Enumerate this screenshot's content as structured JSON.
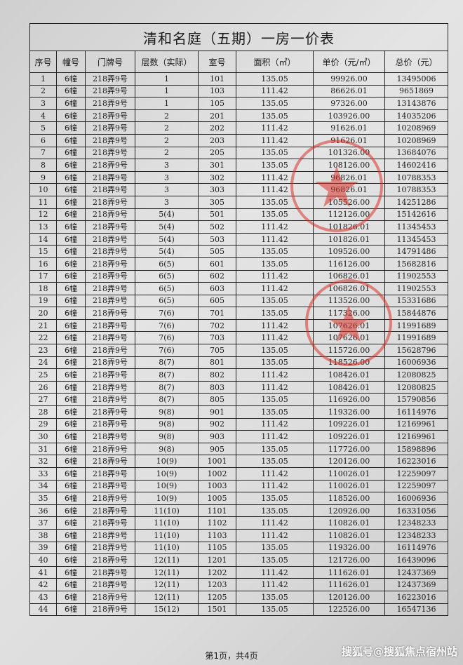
{
  "document": {
    "title": "清和名庭（五期）一房一价表",
    "columns": [
      "序号",
      "幢号",
      "门牌号",
      "层数（实际）",
      "室号",
      "面积（㎡）",
      "单价（元/㎡）",
      "总价（元）"
    ],
    "rows": [
      [
        "1",
        "6幢",
        "218弄9号",
        "1",
        "101",
        "135.05",
        "99926.00",
        "13495006"
      ],
      [
        "2",
        "6幢",
        "218弄9号",
        "1",
        "103",
        "111.42",
        "86626.01",
        "9651869"
      ],
      [
        "3",
        "6幢",
        "218弄9号",
        "1",
        "105",
        "135.05",
        "97326.00",
        "13143876"
      ],
      [
        "4",
        "6幢",
        "218弄9号",
        "2",
        "201",
        "135.05",
        "103926.00",
        "14035206"
      ],
      [
        "5",
        "6幢",
        "218弄9号",
        "2",
        "202",
        "111.42",
        "91626.01",
        "10208969"
      ],
      [
        "6",
        "6幢",
        "218弄9号",
        "2",
        "203",
        "111.42",
        "91626.01",
        "10208969"
      ],
      [
        "7",
        "6幢",
        "218弄9号",
        "2",
        "205",
        "135.05",
        "101326.00",
        "13684076"
      ],
      [
        "8",
        "6幢",
        "218弄9号",
        "3",
        "301",
        "135.05",
        "108126.00",
        "14602416"
      ],
      [
        "9",
        "6幢",
        "218弄9号",
        "3",
        "302",
        "111.42",
        "96826.01",
        "10788353"
      ],
      [
        "10",
        "6幢",
        "218弄9号",
        "3",
        "303",
        "111.42",
        "96826.01",
        "10788353"
      ],
      [
        "11",
        "6幢",
        "218弄9号",
        "3",
        "305",
        "135.05",
        "105526.00",
        "14251286"
      ],
      [
        "12",
        "6幢",
        "218弄9号",
        "5(4)",
        "501",
        "135.05",
        "112126.00",
        "15142616"
      ],
      [
        "13",
        "6幢",
        "218弄9号",
        "5(4)",
        "502",
        "111.42",
        "101826.01",
        "11345453"
      ],
      [
        "14",
        "6幢",
        "218弄9号",
        "5(4)",
        "503",
        "111.42",
        "101826.01",
        "11345453"
      ],
      [
        "15",
        "6幢",
        "218弄9号",
        "5(4)",
        "505",
        "135.05",
        "109526.00",
        "14791486"
      ],
      [
        "16",
        "6幢",
        "218弄9号",
        "6(5)",
        "601",
        "135.05",
        "116126.00",
        "15682816"
      ],
      [
        "17",
        "6幢",
        "218弄9号",
        "6(5)",
        "602",
        "111.42",
        "106826.01",
        "11902553"
      ],
      [
        "18",
        "6幢",
        "218弄9号",
        "6(5)",
        "603",
        "111.42",
        "106826.01",
        "11902553"
      ],
      [
        "19",
        "6幢",
        "218弄9号",
        "6(5)",
        "605",
        "135.05",
        "113526.00",
        "15331686"
      ],
      [
        "20",
        "6幢",
        "218弄9号",
        "7(6)",
        "701",
        "135.05",
        "117326.00",
        "15844876"
      ],
      [
        "21",
        "6幢",
        "218弄9号",
        "7(6)",
        "702",
        "111.42",
        "107626.01",
        "11991689"
      ],
      [
        "22",
        "6幢",
        "218弄9号",
        "7(6)",
        "703",
        "111.42",
        "107626.01",
        "11991689"
      ],
      [
        "23",
        "6幢",
        "218弄9号",
        "7(6)",
        "705",
        "135.05",
        "115726.00",
        "15628796"
      ],
      [
        "24",
        "6幢",
        "218弄9号",
        "8(7)",
        "801",
        "135.05",
        "118526.00",
        "16006936"
      ],
      [
        "25",
        "6幢",
        "218弄9号",
        "8(7)",
        "802",
        "111.42",
        "108426.01",
        "12080825"
      ],
      [
        "26",
        "6幢",
        "218弄9号",
        "8(7)",
        "803",
        "111.42",
        "108426.01",
        "12080825"
      ],
      [
        "27",
        "6幢",
        "218弄9号",
        "8(7)",
        "805",
        "135.05",
        "116926.00",
        "15790856"
      ],
      [
        "28",
        "6幢",
        "218弄9号",
        "9(8)",
        "901",
        "135.05",
        "119326.00",
        "16114976"
      ],
      [
        "29",
        "6幢",
        "218弄9号",
        "9(8)",
        "902",
        "111.42",
        "109226.01",
        "12169961"
      ],
      [
        "30",
        "6幢",
        "218弄9号",
        "9(8)",
        "903",
        "111.42",
        "109226.01",
        "12169961"
      ],
      [
        "31",
        "6幢",
        "218弄9号",
        "9(8)",
        "905",
        "135.05",
        "117726.00",
        "15898896"
      ],
      [
        "32",
        "6幢",
        "218弄9号",
        "10(9)",
        "1001",
        "135.05",
        "120126.00",
        "16223016"
      ],
      [
        "33",
        "6幢",
        "218弄9号",
        "10(9)",
        "1002",
        "111.42",
        "110026.01",
        "12259097"
      ],
      [
        "34",
        "6幢",
        "218弄9号",
        "10(9)",
        "1003",
        "111.42",
        "110026.01",
        "12259097"
      ],
      [
        "35",
        "6幢",
        "218弄9号",
        "10(9)",
        "1005",
        "135.05",
        "118526.00",
        "16006936"
      ],
      [
        "36",
        "6幢",
        "218弄9号",
        "11(10)",
        "1101",
        "135.05",
        "120926.00",
        "16331056"
      ],
      [
        "37",
        "6幢",
        "218弄9号",
        "11(10)",
        "1102",
        "111.42",
        "110826.01",
        "12348233"
      ],
      [
        "38",
        "6幢",
        "218弄9号",
        "11(10)",
        "1103",
        "111.42",
        "110826.01",
        "12348233"
      ],
      [
        "39",
        "6幢",
        "218弄9号",
        "11(10)",
        "1105",
        "135.05",
        "119326.00",
        "16114976"
      ],
      [
        "40",
        "6幢",
        "218弄9号",
        "12(11)",
        "1201",
        "135.05",
        "121726.00",
        "16439096"
      ],
      [
        "41",
        "6幢",
        "218弄9号",
        "12(11)",
        "1202",
        "111.42",
        "111626.01",
        "12437369"
      ],
      [
        "42",
        "6幢",
        "218弄9号",
        "12(11)",
        "1203",
        "111.42",
        "111626.01",
        "12437369"
      ],
      [
        "43",
        "6幢",
        "218弄9号",
        "12(11)",
        "1205",
        "135.05",
        "120126.00",
        "16223016"
      ],
      [
        "44",
        "6幢",
        "218弄9号",
        "15(12)",
        "1501",
        "135.05",
        "122526.00",
        "16547136"
      ]
    ],
    "footer": "第1页，共4页",
    "watermark": "搜狐号@搜狐焦点宿州站",
    "stamp_color": "#d9332b"
  }
}
